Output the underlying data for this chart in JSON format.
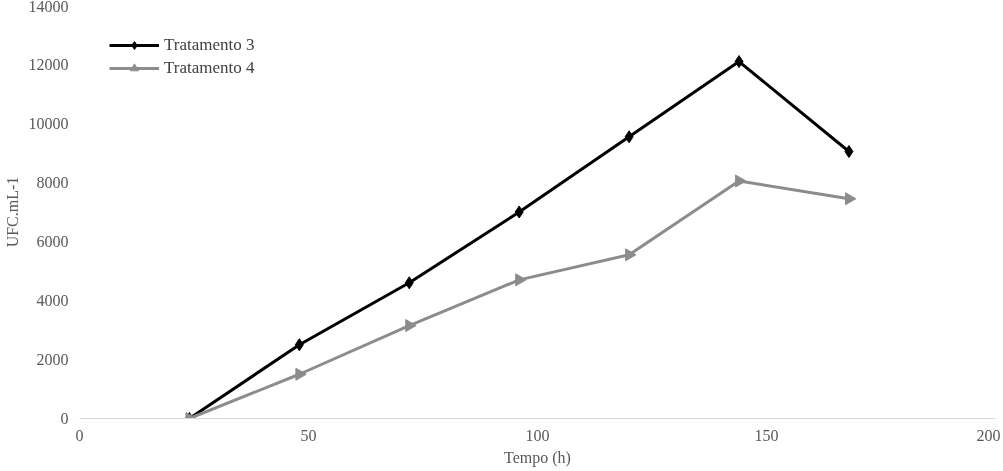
{
  "chart_data": {
    "type": "line",
    "xlabel": "Tempo (h)",
    "ylabel": "UFC.mL-1",
    "xlim": [
      0,
      200
    ],
    "xticks": [
      0,
      50,
      100,
      150,
      200
    ],
    "ylim": [
      0,
      14000
    ],
    "yticks": [
      0,
      2000,
      4000,
      6000,
      8000,
      10000,
      12000,
      14000
    ],
    "x": [
      24,
      48,
      72,
      96,
      120,
      144,
      168
    ],
    "series": [
      {
        "name": "Tratamento 3",
        "color": "#000000",
        "marker": "diamond",
        "values": [
          0,
          2500,
          4600,
          7000,
          9550,
          12100,
          9050
        ]
      },
      {
        "name": "Tratamento 4",
        "color": "#8c8c8c",
        "marker": "triangle",
        "values": [
          0,
          1500,
          3150,
          4700,
          5550,
          8050,
          7450
        ]
      }
    ],
    "grid": false,
    "legend": "top left",
    "line_style": "solid"
  }
}
